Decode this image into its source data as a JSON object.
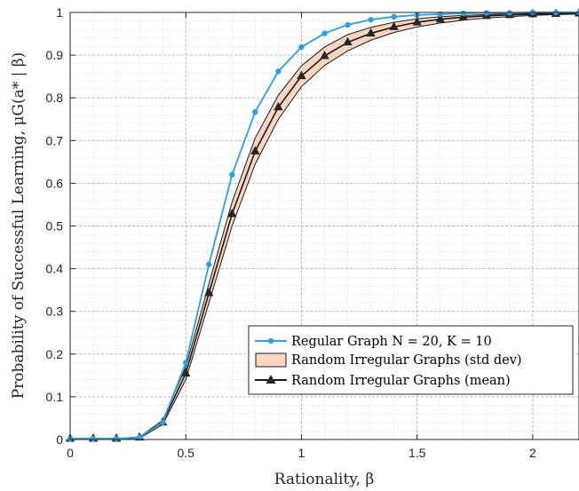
{
  "colors": {
    "regular": "#2E9FE0",
    "band_fill": "#F9D5C2",
    "mean": "#1A1A1A",
    "grid": "#C8C8C8",
    "axis": "#262626"
  },
  "chart_data": {
    "type": "line",
    "xlabel": "Rationality, β",
    "ylabel": "Probability of Successful Learning, μG(a* | β)",
    "xlim": [
      0,
      2.2
    ],
    "ylim": [
      0,
      1
    ],
    "grid": true,
    "minor_grid": true,
    "legend_position": "bottom-right",
    "x_ticks": [
      "0",
      "0.5",
      "1",
      "1.5",
      "2"
    ],
    "y_ticks": [
      "0",
      "0.1",
      "0.2",
      "0.3",
      "0.4",
      "0.5",
      "0.6",
      "0.7",
      "0.8",
      "0.9",
      "1"
    ],
    "x": [
      0,
      0.1,
      0.2,
      0.3,
      0.4,
      0.5,
      0.6,
      0.7,
      0.8,
      0.9,
      1.0,
      1.1,
      1.2,
      1.3,
      1.4,
      1.5,
      1.6,
      1.7,
      1.8,
      1.9,
      2.0,
      2.1,
      2.2
    ],
    "series": [
      {
        "name": "Regular Graph N = 20, K = 10",
        "marker": "dot",
        "values": [
          0.002,
          0.002,
          0.002,
          0.005,
          0.04,
          0.18,
          0.41,
          0.62,
          0.767,
          0.862,
          0.919,
          0.951,
          0.971,
          0.983,
          0.99,
          0.994,
          0.996,
          0.998,
          0.999,
          0.999,
          1.0,
          1.0,
          1.0
        ]
      },
      {
        "name": "Random Irregular Graphs (std dev)",
        "type": "band",
        "lower": [
          0.001,
          0.001,
          0.001,
          0.003,
          0.035,
          0.14,
          0.32,
          0.5,
          0.645,
          0.75,
          0.826,
          0.876,
          0.91,
          0.935,
          0.953,
          0.966,
          0.975,
          0.982,
          0.987,
          0.99,
          0.993,
          0.995,
          0.996
        ],
        "upper": [
          0.002,
          0.002,
          0.002,
          0.006,
          0.045,
          0.17,
          0.365,
          0.556,
          0.706,
          0.806,
          0.875,
          0.919,
          0.948,
          0.965,
          0.977,
          0.985,
          0.99,
          0.993,
          0.995,
          0.997,
          0.998,
          0.999,
          0.999
        ]
      },
      {
        "name": "Random Irregular Graphs (mean)",
        "marker": "triangle",
        "values": [
          0.002,
          0.002,
          0.002,
          0.005,
          0.04,
          0.155,
          0.343,
          0.528,
          0.675,
          0.778,
          0.851,
          0.898,
          0.93,
          0.951,
          0.966,
          0.977,
          0.984,
          0.989,
          0.992,
          0.994,
          0.996,
          0.997,
          0.998
        ]
      }
    ]
  }
}
